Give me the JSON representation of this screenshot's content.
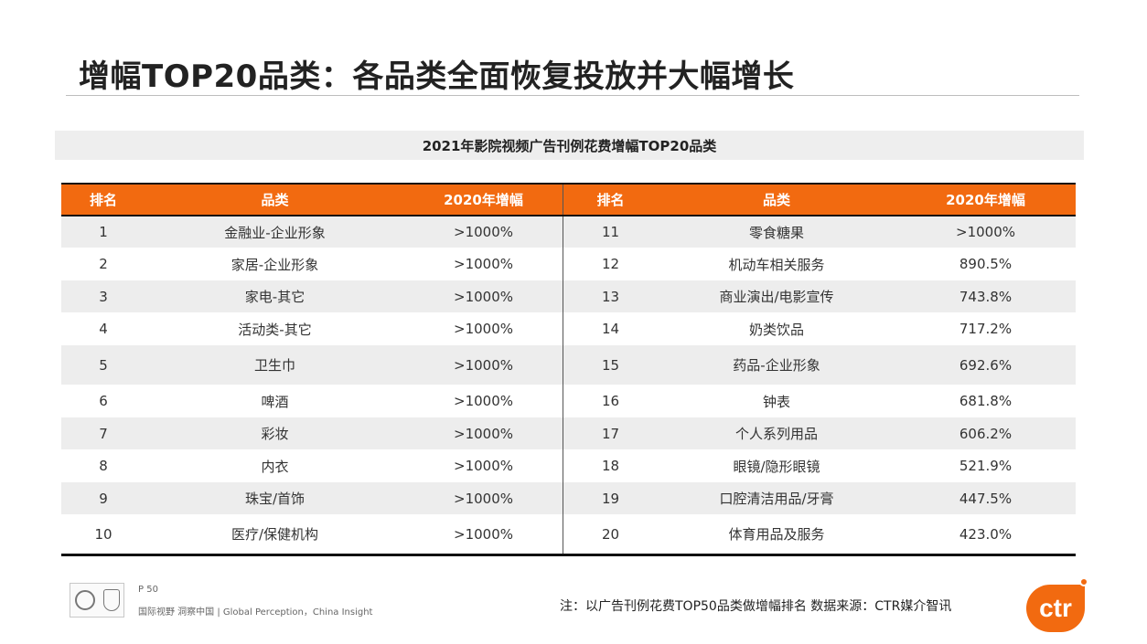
{
  "slide": {
    "title": "增幅TOP20品类：各品类全面恢复投放并大幅增长",
    "subtitle": "2021年影院视频广告刊例花费增幅TOP20品类"
  },
  "table": {
    "headers": [
      "排名",
      "品类",
      "2020年增幅",
      "排名",
      "品类",
      "2020年增幅"
    ],
    "rows": [
      {
        "rank_a": "1",
        "cat_a": "金融业-企业形象",
        "val_a": ">1000%",
        "rank_b": "11",
        "cat_b": "零食糖果",
        "val_b": ">1000%"
      },
      {
        "rank_a": "2",
        "cat_a": "家居-企业形象",
        "val_a": ">1000%",
        "rank_b": "12",
        "cat_b": "机动车相关服务",
        "val_b": "890.5%"
      },
      {
        "rank_a": "3",
        "cat_a": "家电-其它",
        "val_a": ">1000%",
        "rank_b": "13",
        "cat_b": "商业演出/电影宣传",
        "val_b": "743.8%"
      },
      {
        "rank_a": "4",
        "cat_a": "活动类-其它",
        "val_a": ">1000%",
        "rank_b": "14",
        "cat_b": "奶类饮品",
        "val_b": "717.2%"
      },
      {
        "rank_a": "5",
        "cat_a": "卫生巾",
        "val_a": ">1000%",
        "rank_b": "15",
        "cat_b": "药品-企业形象",
        "val_b": "692.6%"
      },
      {
        "rank_a": "6",
        "cat_a": "啤酒",
        "val_a": ">1000%",
        "rank_b": "16",
        "cat_b": "钟表",
        "val_b": "681.8%"
      },
      {
        "rank_a": "7",
        "cat_a": "彩妆",
        "val_a": ">1000%",
        "rank_b": "17",
        "cat_b": "个人系列用品",
        "val_b": "606.2%"
      },
      {
        "rank_a": "8",
        "cat_a": "内衣",
        "val_a": ">1000%",
        "rank_b": "18",
        "cat_b": "眼镜/隐形眼镜",
        "val_b": "521.9%"
      },
      {
        "rank_a": "9",
        "cat_a": "珠宝/首饰",
        "val_a": ">1000%",
        "rank_b": "19",
        "cat_b": "口腔清洁用品/牙膏",
        "val_b": "447.5%"
      },
      {
        "rank_a": "10",
        "cat_a": "医疗/保健机构",
        "val_a": ">1000%",
        "rank_b": "20",
        "cat_b": "体育用品及服务",
        "val_b": "423.0%"
      }
    ]
  },
  "footer": {
    "page": "P 50",
    "tagline": "国际视野 洞察中国 | Global Perception，China Insight",
    "note": "注：以广告刊例花费TOP50品类做增幅排名   数据来源：CTR媒介智讯",
    "brand": "ctr",
    "certification_icon": "certification-seal-icon"
  },
  "colors": {
    "accent": "#f26a10",
    "row_stripe": "#ededed",
    "rule": "#111111"
  }
}
